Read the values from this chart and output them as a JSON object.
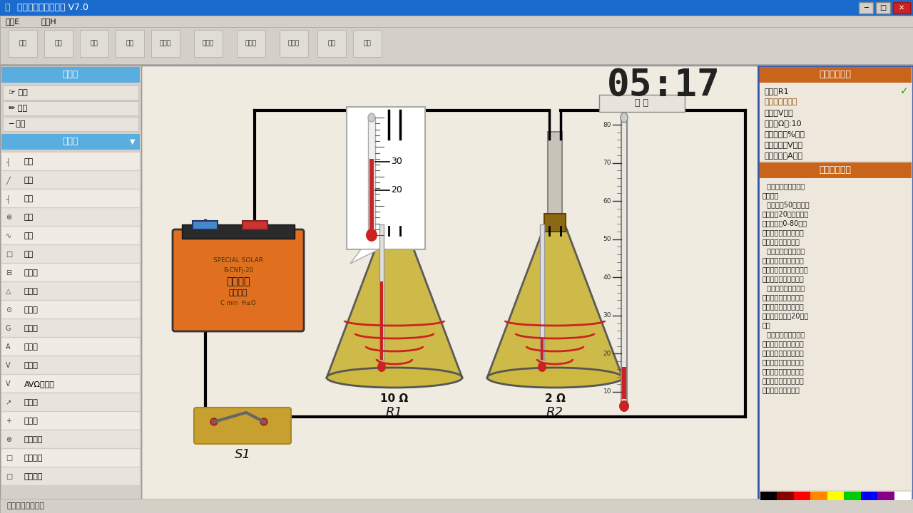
{
  "title": "中学电路虚拟实验室 V7.0",
  "titlebar_color": "#1b6bce",
  "main_bg": "#d4d0c8",
  "canvas_bg": "#f0ebe0",
  "left_panel_blue": "#5aaddf",
  "right_panel_bg": "#ddd8cc",
  "settings_orange": "#c8651a",
  "timer_text": "05:17",
  "freeze_text": "冻 结",
  "toolbox_label": "工具箱",
  "tools": [
    "选择",
    "删除",
    "导线"
  ],
  "components_label": "元件箱",
  "component_list": [
    [
      "├┤",
      "电源"
    ],
    [
      "╱",
      "开关"
    ],
    [
      "┤",
      "开关"
    ],
    [
      "⊗",
      "电灯"
    ],
    [
      "∿",
      "电铃"
    ],
    [
      "□",
      "电阻"
    ],
    [
      "⊟",
      "电阻箱"
    ],
    [
      "△",
      "变阻器"
    ],
    [
      "⊙",
      "电动机"
    ],
    [
      "G",
      "电流计"
    ],
    [
      "A",
      "电流表"
    ],
    [
      "V",
      "电压表"
    ],
    [
      "AV",
      "AVΩ多用表"
    ],
    [
      "↗",
      "二极管"
    ],
    [
      "+",
      "接线柱"
    ],
    [
      "⊗",
      "变阻电灯"
    ],
    [
      "□",
      "电阻测试"
    ],
    [
      "□",
      "电热烧瓶"
    ]
  ],
  "settings_title": "当前元件设置",
  "settings_items": [
    [
      "名称：",
      "R1",
      true
    ],
    [
      "类别：",
      "电热烧瓶",
      false
    ],
    [
      "电压（V）：",
      "",
      false
    ],
    [
      "电阻（Ω）:10",
      "",
      false
    ],
    [
      "触点位置（%）：",
      "",
      false
    ],
    [
      "额定电压（V）：",
      "",
      false
    ],
    [
      "额定电流（A）：",
      "",
      false
    ]
  ],
  "desc_title": "当前元件说明",
  "desc_lines": [
    "  电热烧瓶用于探究焦",
    "耳定律。",
    "  烧瓶内装50克煤油，",
    "默认常温20摄氏度，温",
    "度计刻度从0-80摄氏",
    "度，电热丝电阻可在设",
    "置面板中随意设置。",
    "  右击电热烧瓶，可显",
    "示温度计局部放大图。",
    "双击烧瓶底电阻值标识可",
    "弹出电阻值修改窗口。",
    "  为节约时间，程序不",
    "模拟煤油冷却过程，默",
    "认当烧瓶电流为零时，",
    "煤油即回到常温20摄氏",
    "度。",
    "  文件菜单中可设置电",
    "热烧瓶通电时是否显示",
    "时钟，单击时钟可切换",
    "是否冻结全部电热烧瓶",
    "状态。电热烧瓶通电时",
    "右击实验区右上角，可",
    "切换是否显示时钟。"
  ],
  "r1_label": "10 Ω",
  "r1_name": "R1",
  "r2_label": "2 Ω",
  "r2_name": "R2",
  "s1_name": "S1",
  "status_text": "提示：电路畅通。",
  "toolbar_items": [
    "开始",
    "打开",
    "保存",
    "后退",
    "存图片",
    "电路图",
    "手绘板",
    "家用电",
    "帮助",
    "退出"
  ],
  "color_bar": [
    "#000000",
    "#880000",
    "#ff0000",
    "#ff8800",
    "#ffff00",
    "#00cc00",
    "#0000ff",
    "#880088",
    "#ffffff"
  ]
}
